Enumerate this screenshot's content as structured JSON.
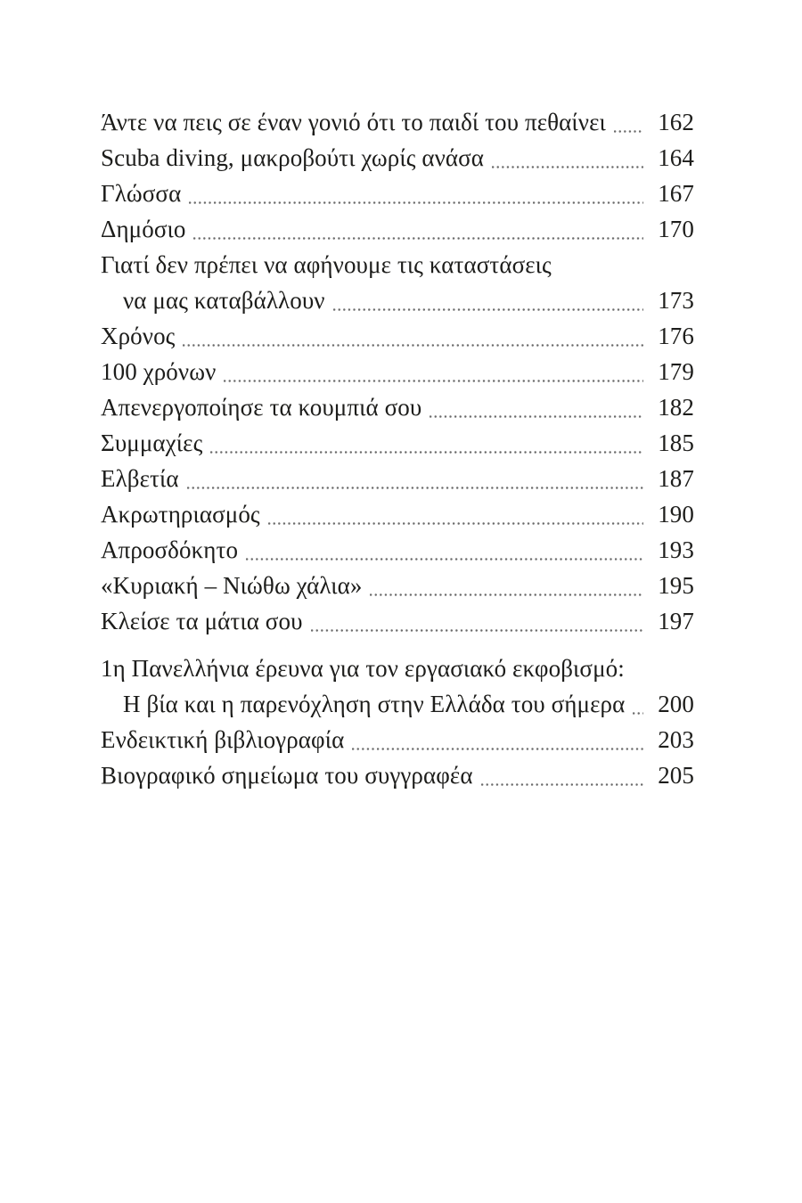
{
  "page": {
    "background": "#ffffff",
    "text_color": "#1d1d1b",
    "leader_dot_color": "#6b6b6b"
  },
  "toc": {
    "entries": [
      {
        "label": "Άντε να πεις σε έναν γονιό ότι το παιδί του πεθαίνει",
        "page": "162"
      },
      {
        "label": "Scuba diving, μακροβούτι χωρίς ανάσα",
        "page": "164"
      },
      {
        "label": "Γλώσσα",
        "page": "167"
      },
      {
        "label": "Δημόσιο",
        "page": "170"
      },
      {
        "label": "Γιατί δεν πρέπει να αφήνουμε τις καταστάσεις",
        "label2": "να μας καταβάλλουν",
        "page": "173"
      },
      {
        "label": "Χρόνος",
        "page": "176"
      },
      {
        "label": "100 χρόνων",
        "page": "179"
      },
      {
        "label": "Απενεργοποίησε τα κουμπιά σου",
        "page": "182"
      },
      {
        "label": "Συμμαχίες",
        "page": "185"
      },
      {
        "label": "Ελβετία",
        "page": "187"
      },
      {
        "label": "Ακρωτηριασμός",
        "page": "190"
      },
      {
        "label": "Απροσδόκητο",
        "page": "193"
      },
      {
        "label": "«Κυριακή – Νιώθω χάλια»",
        "page": "195"
      },
      {
        "label": "Κλείσε τα μάτια σου",
        "page": "197"
      },
      {
        "label": "1η Πανελλήνια έρευνα για τον εργασιακό εκφοβισμό:",
        "label2": "Η βία και η παρενόχληση στην Ελλάδα του σήμερα",
        "page": "200",
        "group_break": true
      },
      {
        "label": "Ενδεικτική βιβλιογραφία",
        "page": "203"
      },
      {
        "label": "Βιογραφικό σημείωμα του συγγραφέα",
        "page": "205"
      }
    ]
  }
}
